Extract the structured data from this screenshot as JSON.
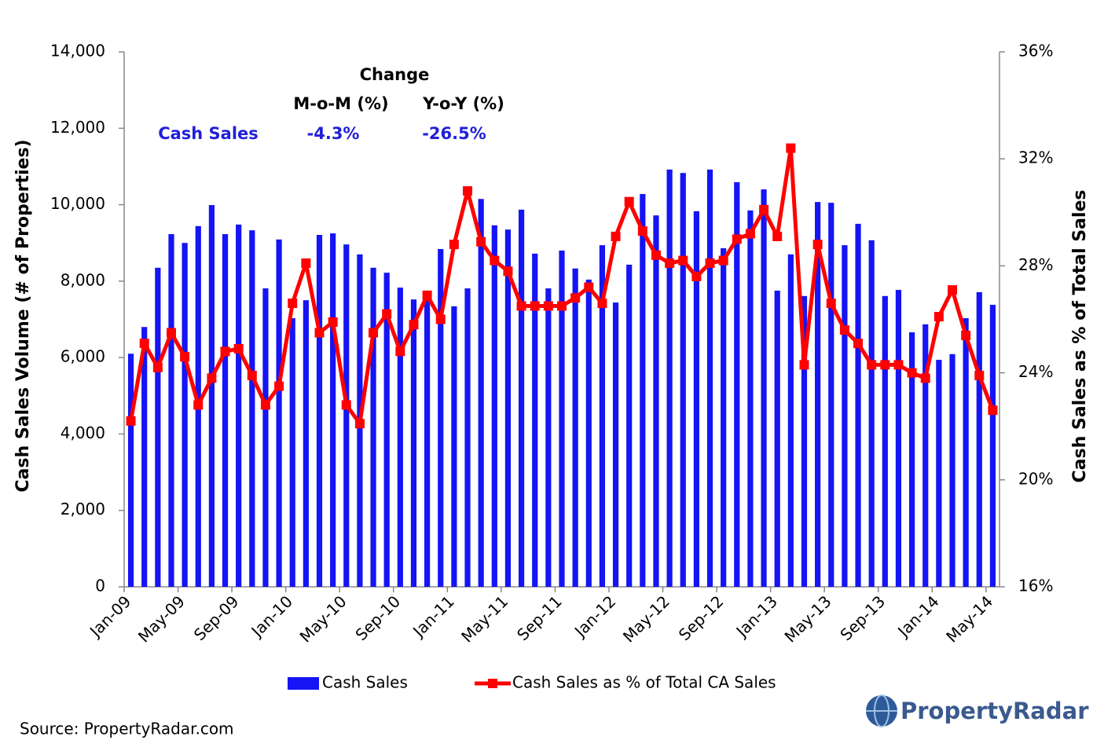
{
  "chart_data": {
    "type": "bar-line",
    "y_label": "Cash Sales Volume (# of Properties)",
    "y2_label": "Cash Sales as % of Total Sales",
    "categories": [
      "Jan-09",
      null,
      null,
      null,
      "May-09",
      null,
      null,
      null,
      "Sep-09",
      null,
      null,
      null,
      "Jan-10",
      null,
      null,
      null,
      "May-10",
      null,
      null,
      null,
      "Sep-10",
      null,
      null,
      null,
      "Jan-11",
      null,
      null,
      null,
      "May-11",
      null,
      null,
      null,
      "Sep-11",
      null,
      null,
      null,
      "Jan-12",
      null,
      null,
      null,
      "May-12",
      null,
      null,
      null,
      "Sep-12",
      null,
      null,
      null,
      "Jan-13",
      null,
      null,
      null,
      "May-13",
      null,
      null,
      null,
      "Sep-13",
      null,
      null,
      null,
      "Jan-14",
      null,
      null,
      null,
      "May-14"
    ],
    "series": [
      {
        "name": "Cash Sales",
        "type": "bar",
        "color": "#1414f5",
        "values": [
          6100,
          6800,
          8350,
          9230,
          9000,
          9440,
          9990,
          9230,
          9480,
          9330,
          7810,
          9090,
          7030,
          7500,
          9210,
          9250,
          8960,
          8700,
          8350,
          8220,
          7830,
          7520,
          7600,
          8840,
          7340,
          7810,
          10150,
          9460,
          9350,
          9870,
          8720,
          7810,
          8800,
          8330,
          8040,
          8940,
          7440,
          8430,
          10280,
          9720,
          10920,
          10830,
          9830,
          10920,
          8860,
          10590,
          9850,
          10400,
          7750,
          8700,
          7610,
          10070,
          10050,
          8940,
          9500,
          9070,
          7610,
          7770,
          6660,
          6870,
          5940,
          6090,
          7030,
          7710,
          7380
        ]
      },
      {
        "name": "Cash Sales as % of Total CA Sales",
        "type": "line",
        "axis": "y2",
        "color": "#ff0000",
        "values": [
          22.2,
          25.1,
          24.2,
          25.5,
          24.6,
          22.8,
          23.8,
          24.8,
          24.9,
          23.9,
          22.8,
          23.5,
          26.6,
          28.1,
          25.5,
          25.9,
          22.8,
          22.1,
          25.5,
          26.2,
          24.8,
          25.8,
          26.9,
          26.0,
          28.8,
          30.8,
          28.9,
          28.2,
          27.8,
          26.5,
          26.5,
          26.5,
          26.5,
          26.8,
          27.2,
          26.6,
          29.1,
          30.4,
          29.3,
          28.4,
          28.1,
          28.2,
          27.6,
          28.1,
          28.2,
          29.0,
          29.2,
          30.1,
          29.1,
          32.4,
          24.3,
          28.8,
          26.6,
          25.6,
          25.1,
          24.3,
          24.3,
          24.3,
          24.0,
          23.8,
          26.1,
          27.1,
          25.4,
          23.9,
          22.6
        ]
      }
    ],
    "ylim": [
      0,
      14000
    ],
    "yticks": [
      0,
      {
        "value": 2000,
        "label": "2,000"
      },
      {
        "value": 4000,
        "label": "4,000"
      },
      {
        "value": 6000,
        "label": "6,000"
      },
      {
        "value": 8000,
        "label": "8,000"
      },
      {
        "value": 10000,
        "label": "10,000"
      },
      {
        "value": 12000,
        "label": "12,000"
      },
      {
        "value": 14000,
        "label": "14,000"
      }
    ],
    "y2lim": [
      16,
      36
    ],
    "y2ticks": [
      {
        "value": 16,
        "label": "16%"
      },
      {
        "value": 20,
        "label": "20%"
      },
      {
        "value": 24,
        "label": "24%"
      },
      {
        "value": 28,
        "label": "28%"
      },
      {
        "value": 32,
        "label": "32%"
      },
      {
        "value": 36,
        "label": "36%"
      }
    ],
    "grid": false,
    "legend": "bottom",
    "annotation": {
      "title": "Change",
      "columns": [
        "M-o-M (%)",
        "Y-o-Y (%)"
      ],
      "row_label": "Cash Sales",
      "row_values": [
        "-4.3%",
        "-26.5%"
      ]
    },
    "source": "Source: PropertyRadar.com",
    "logo": "PropertyRadar"
  }
}
